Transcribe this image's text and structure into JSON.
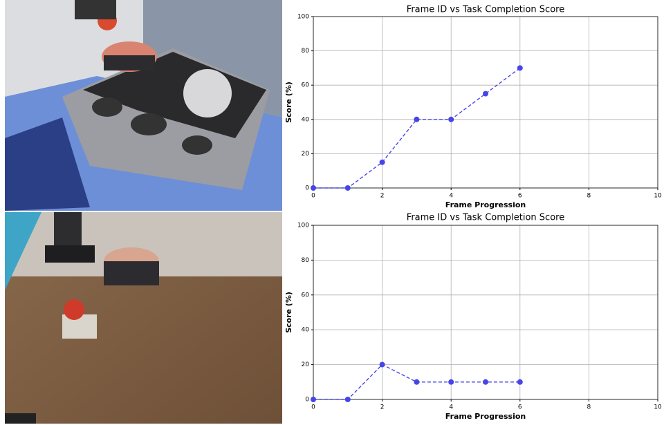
{
  "chart_data": [
    {
      "type": "line",
      "title": "Frame ID vs Task Completion Score",
      "xlabel": "Frame Progression",
      "ylabel": "Score (%)",
      "x": [
        0,
        1,
        2,
        3,
        4,
        5,
        6
      ],
      "values": [
        0,
        0,
        15,
        40,
        40,
        55,
        70
      ],
      "color": "#4646e8",
      "linestyle": "dashed",
      "xlim": [
        0,
        10
      ],
      "xticks": [
        0,
        2,
        4,
        6,
        8,
        10
      ],
      "ylim": [
        0,
        100
      ],
      "yticks": [
        0,
        20,
        40,
        60,
        80,
        100
      ],
      "grid": true
    },
    {
      "type": "line",
      "title": "Frame ID vs Task Completion Score",
      "xlabel": "Frame Progression",
      "ylabel": "Score (%)",
      "x": [
        0,
        1,
        2,
        3,
        4,
        5,
        6
      ],
      "values": [
        0,
        0,
        20,
        10,
        10,
        10,
        10
      ],
      "color": "#4646e8",
      "linestyle": "dashed",
      "xlim": [
        0,
        10
      ],
      "xticks": [
        0,
        2,
        4,
        6,
        8,
        10
      ],
      "ylim": [
        0,
        100
      ],
      "yticks": [
        0,
        20,
        40,
        60,
        80,
        100
      ],
      "grid": true
    }
  ]
}
